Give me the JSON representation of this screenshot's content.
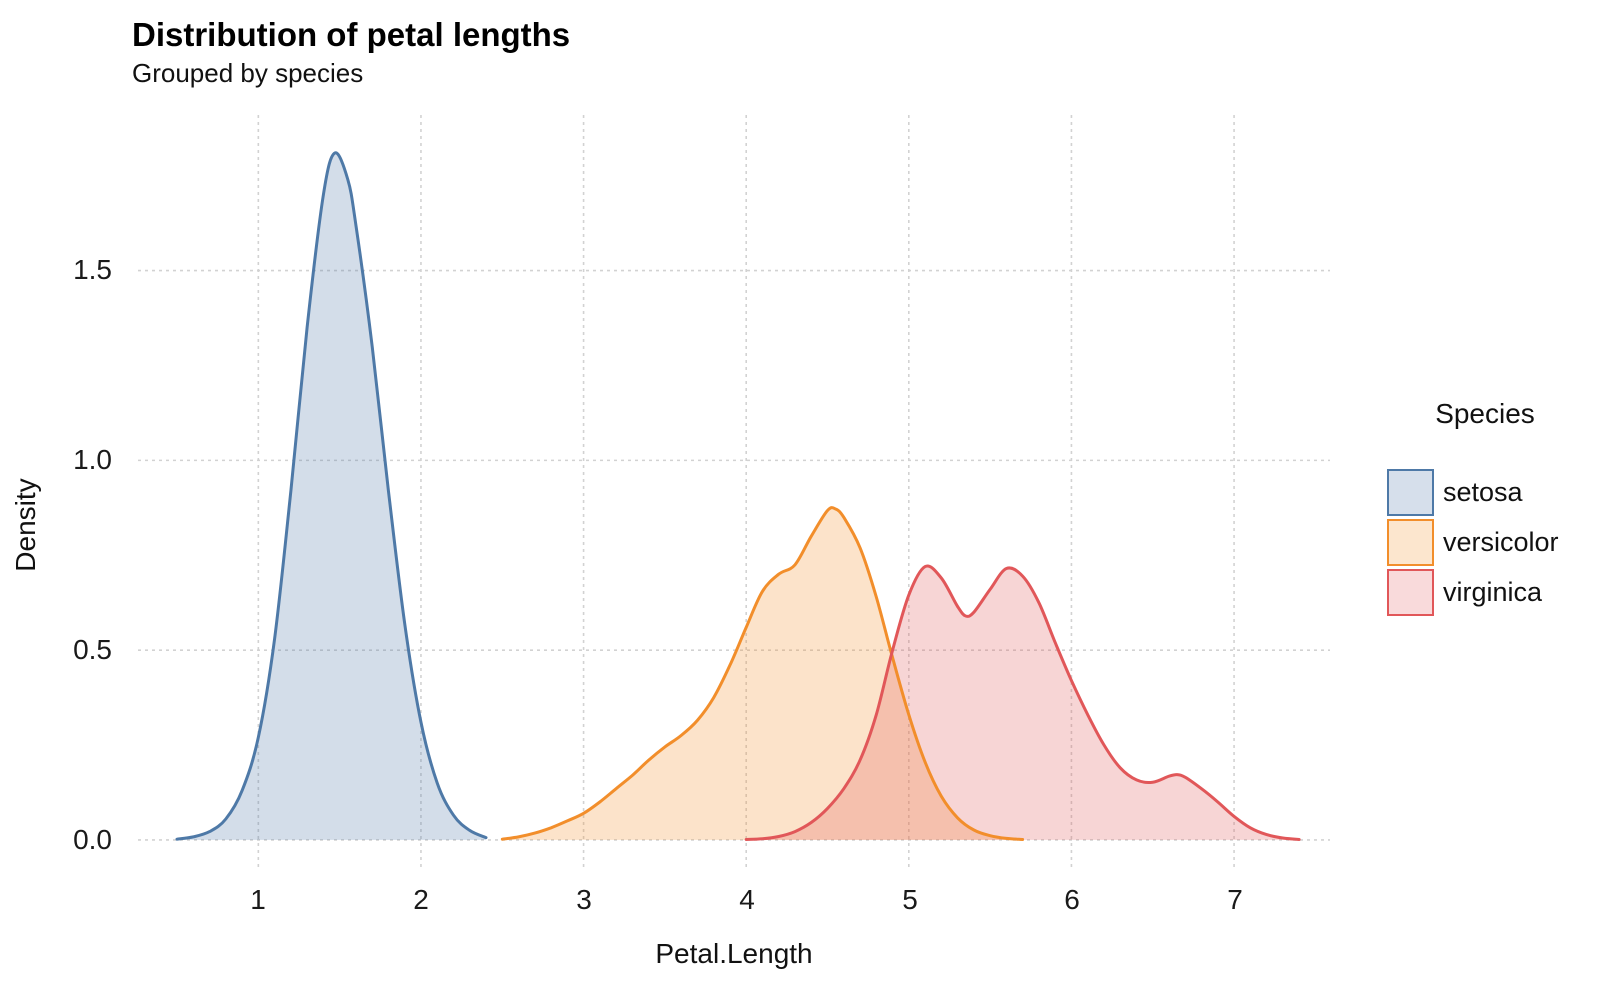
{
  "title": "Distribution of petal lengths",
  "subtitle": "Grouped by species",
  "chart_data": {
    "type": "area",
    "subtype": "density",
    "title": "Distribution of petal lengths",
    "subtitle": "Grouped by species",
    "xlabel": "Petal.Length",
    "ylabel": "Density",
    "x_ticks": [
      1,
      2,
      3,
      4,
      5,
      6,
      7
    ],
    "y_tick_labels": [
      "0.0",
      "0.5",
      "1.0",
      "1.5"
    ],
    "y_tick_values": [
      0,
      0.5,
      1.0,
      1.5
    ],
    "xlim": [
      0.26,
      7.59
    ],
    "ylim": [
      -0.074,
      1.91
    ],
    "grid": "dashed",
    "grid_color": "#d2d2d2",
    "legend": {
      "title": "Species",
      "position": "right"
    },
    "fill_opacity": 0.25,
    "series": [
      {
        "name": "setosa",
        "color": "#4E79A7",
        "legend_fill": "#D6DFEB",
        "points": [
          [
            0.5,
            0.002
          ],
          [
            0.6,
            0.008
          ],
          [
            0.7,
            0.022
          ],
          [
            0.8,
            0.055
          ],
          [
            0.9,
            0.13
          ],
          [
            1.0,
            0.27
          ],
          [
            1.1,
            0.53
          ],
          [
            1.2,
            0.92
          ],
          [
            1.3,
            1.35
          ],
          [
            1.4,
            1.7
          ],
          [
            1.47,
            1.81
          ],
          [
            1.55,
            1.74
          ],
          [
            1.6,
            1.62
          ],
          [
            1.7,
            1.3
          ],
          [
            1.8,
            0.92
          ],
          [
            1.9,
            0.57
          ],
          [
            2.0,
            0.31
          ],
          [
            2.1,
            0.15
          ],
          [
            2.2,
            0.065
          ],
          [
            2.3,
            0.025
          ],
          [
            2.4,
            0.006
          ]
        ]
      },
      {
        "name": "versicolor",
        "color": "#F28E2B",
        "legend_fill": "#FCE6CE",
        "points": [
          [
            2.5,
            0.002
          ],
          [
            2.6,
            0.008
          ],
          [
            2.7,
            0.018
          ],
          [
            2.8,
            0.032
          ],
          [
            2.9,
            0.05
          ],
          [
            3.0,
            0.07
          ],
          [
            3.1,
            0.1
          ],
          [
            3.2,
            0.135
          ],
          [
            3.3,
            0.17
          ],
          [
            3.4,
            0.21
          ],
          [
            3.5,
            0.245
          ],
          [
            3.6,
            0.275
          ],
          [
            3.7,
            0.315
          ],
          [
            3.8,
            0.375
          ],
          [
            3.9,
            0.46
          ],
          [
            4.0,
            0.56
          ],
          [
            4.1,
            0.655
          ],
          [
            4.2,
            0.7
          ],
          [
            4.3,
            0.725
          ],
          [
            4.4,
            0.8
          ],
          [
            4.5,
            0.868
          ],
          [
            4.55,
            0.872
          ],
          [
            4.6,
            0.85
          ],
          [
            4.7,
            0.77
          ],
          [
            4.8,
            0.64
          ],
          [
            4.9,
            0.48
          ],
          [
            5.0,
            0.33
          ],
          [
            5.1,
            0.205
          ],
          [
            5.2,
            0.115
          ],
          [
            5.3,
            0.058
          ],
          [
            5.4,
            0.026
          ],
          [
            5.5,
            0.011
          ],
          [
            5.6,
            0.004
          ],
          [
            5.7,
            0.001
          ]
        ]
      },
      {
        "name": "virginica",
        "color": "#E15759",
        "legend_fill": "#F9DADB",
        "points": [
          [
            4.0,
            0.001
          ],
          [
            4.1,
            0.003
          ],
          [
            4.2,
            0.009
          ],
          [
            4.3,
            0.022
          ],
          [
            4.4,
            0.046
          ],
          [
            4.5,
            0.083
          ],
          [
            4.6,
            0.135
          ],
          [
            4.7,
            0.21
          ],
          [
            4.8,
            0.33
          ],
          [
            4.9,
            0.5
          ],
          [
            5.0,
            0.645
          ],
          [
            5.1,
            0.72
          ],
          [
            5.2,
            0.69
          ],
          [
            5.3,
            0.615
          ],
          [
            5.35,
            0.59
          ],
          [
            5.4,
            0.6
          ],
          [
            5.5,
            0.66
          ],
          [
            5.6,
            0.715
          ],
          [
            5.7,
            0.695
          ],
          [
            5.8,
            0.625
          ],
          [
            5.9,
            0.52
          ],
          [
            6.0,
            0.42
          ],
          [
            6.1,
            0.33
          ],
          [
            6.2,
            0.25
          ],
          [
            6.3,
            0.19
          ],
          [
            6.4,
            0.158
          ],
          [
            6.5,
            0.152
          ],
          [
            6.6,
            0.168
          ],
          [
            6.65,
            0.172
          ],
          [
            6.7,
            0.165
          ],
          [
            6.8,
            0.135
          ],
          [
            6.9,
            0.1
          ],
          [
            7.0,
            0.062
          ],
          [
            7.1,
            0.032
          ],
          [
            7.2,
            0.014
          ],
          [
            7.3,
            0.005
          ],
          [
            7.4,
            0.001
          ]
        ]
      }
    ]
  }
}
